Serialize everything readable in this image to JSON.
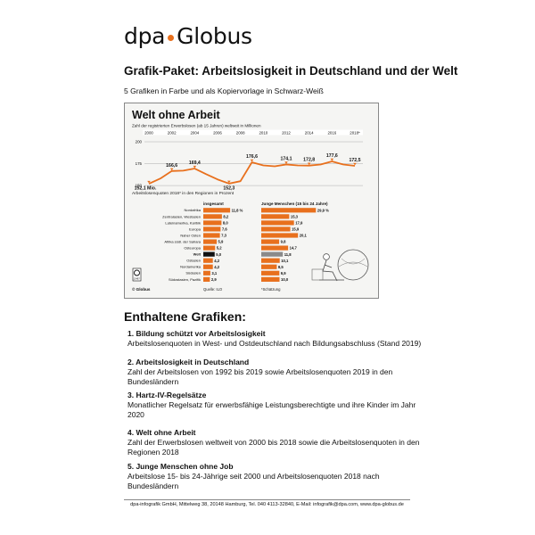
{
  "logo": {
    "part1": "dpa",
    "part2": "Globus"
  },
  "package": {
    "title": "Grafik-Paket: Arbeitslosigkeit in Deutschland und der Welt",
    "subtitle": "5 Grafiken in Farbe und als Kopiervorlage in Schwarz-Weiß"
  },
  "thumbnail": {
    "title": "Welt ohne Arbeit",
    "subtitle": "Zahl der registrierten Erwerbslosen (ab 15 Jahren) weltweit in Millionen",
    "colors": {
      "accent": "#e8701d",
      "dark_bar": "#111111",
      "gray_bar": "#8a8a8a"
    },
    "line_chart": {
      "years": [
        "2000",
        "2002",
        "2004",
        "2006",
        "2008",
        "2010",
        "2012",
        "2014",
        "2016",
        "2018*"
      ],
      "y_ticks": [
        "200",
        "175",
        "150"
      ],
      "labels": [
        "152,1 Mio.",
        "166,6",
        "169,4",
        "152,3",
        "176,6",
        "174,1",
        "172,8",
        "177,6",
        "172,5"
      ]
    },
    "bar_section_title": "Arbeitslosenquoten 2018* in den Regionen in Prozent",
    "col_total": "insgesamt",
    "col_youth": "Junge Menschen (15 bis 24 Jahre)",
    "regions": [
      "Nordafrika",
      "Zentralasien, Westasien",
      "Lateinamerika, Karibik",
      "Europa",
      "Naher Osten",
      "Afrika südl. der Sahara",
      "Osteuropa",
      "Welt",
      "Ostasien",
      "Nordamerika",
      "Südasien",
      "Südostasien, Pazifik"
    ],
    "total_labels": [
      "11,8 %",
      "8,2",
      "8,0",
      "7,6",
      "7,3",
      "5,9",
      "5,2",
      "5,0",
      "4,2",
      "4,2",
      "3,1",
      "2,9"
    ],
    "youth_labels": [
      "29,9 %",
      "15,3",
      "17,9",
      "15,9",
      "20,1",
      "9,8",
      "14,7",
      "11,8",
      "10,1",
      "8,5",
      "9,9",
      "10,0"
    ],
    "footer_left": "© Globus",
    "footer_source": "Quelle: ILO",
    "footer_note": "*Schätzung",
    "badge_text": "13487"
  },
  "chart_data": [
    {
      "type": "line",
      "title": "Welt ohne Arbeit",
      "subtitle": "Zahl der registrierten Erwerbslosen (ab 15 Jahren) weltweit in Millionen",
      "x": [
        "2000",
        "2002",
        "2004",
        "2006",
        "2008",
        "2010",
        "2012",
        "2014",
        "2016",
        "2018*"
      ],
      "series": [
        {
          "values": [
            {
              "x": 2000,
              "y": 152.1
            },
            {
              "x": 2001,
              "y": 158
            },
            {
              "x": 2002,
              "y": 166.6
            },
            {
              "x": 2003,
              "y": 167
            },
            {
              "x": 2004,
              "y": 169.4
            },
            {
              "x": 2005,
              "y": 163
            },
            {
              "x": 2006,
              "y": 157
            },
            {
              "x": 2007,
              "y": 152.3
            },
            {
              "x": 2008,
              "y": 155
            },
            {
              "x": 2009,
              "y": 176.6
            },
            {
              "x": 2010,
              "y": 173
            },
            {
              "x": 2011,
              "y": 172
            },
            {
              "x": 2012,
              "y": 174.1
            },
            {
              "x": 2013,
              "y": 173
            },
            {
              "x": 2014,
              "y": 172.8
            },
            {
              "x": 2015,
              "y": 174
            },
            {
              "x": 2016,
              "y": 177.6
            },
            {
              "x": 2017,
              "y": 174
            },
            {
              "x": 2018,
              "y": 172.5
            }
          ]
        }
      ],
      "ylim": [
        145,
        200
      ],
      "y_ticks": [
        150,
        175,
        200
      ]
    },
    {
      "type": "bar",
      "title": "Arbeitslosenquoten 2018* in den Regionen in Prozent",
      "categories": [
        "Nordafrika",
        "Zentralasien, Westasien",
        "Lateinamerika, Karibik",
        "Europa",
        "Naher Osten",
        "Afrika südl. der Sahara",
        "Osteuropa",
        "Welt",
        "Ostasien",
        "Nordamerika",
        "Südasien",
        "Südostasien, Pazifik"
      ],
      "series": [
        {
          "name": "insgesamt",
          "values": [
            11.8,
            8.2,
            8.0,
            7.6,
            7.3,
            5.9,
            5.2,
            5.0,
            4.2,
            4.2,
            3.1,
            2.9
          ]
        },
        {
          "name": "Junge Menschen (15 bis 24 Jahre)",
          "values": [
            29.9,
            15.3,
            17.9,
            15.9,
            20.1,
            9.8,
            14.7,
            11.8,
            10.1,
            8.5,
            9.9,
            10.0
          ]
        }
      ]
    }
  ],
  "contents": {
    "heading": "Enthaltene Grafiken:",
    "items": [
      {
        "title": "1. Bildung schützt vor Arbeitslosigkeit",
        "desc": "Arbeitslosenquoten in West- und Ostdeutschland nach Bildungsabschluss (Stand 2019)"
      },
      {
        "title": "2. Arbeitslosigkeit in Deutschland",
        "desc": "Zahl der Arbeitslosen von 1992 bis 2019 sowie Arbeitslosenquoten 2019 in den Bundesländern"
      },
      {
        "title": "3. Hartz-IV-Regelsätze",
        "desc": "Monatlicher Regelsatz für erwerbsfähige Leistungsberechtigte und ihre Kinder im Jahr 2020"
      },
      {
        "title": "4. Welt ohne Arbeit",
        "desc": "Zahl der Erwerbslosen weltweit von 2000 bis 2018 sowie die Arbeitslosenquoten in den Regionen 2018"
      },
      {
        "title": "5. Junge Menschen ohne Job",
        "desc": "Arbeitslose 15- bis 24-Jährige seit 2000 und Arbeitslosenquoten 2018 nach Bundesländern"
      }
    ]
  },
  "footer": "dpa-infografik GmbH, Mittelweg 38, 20148 Hamburg, Tel. 040 4113-32840, E-Mail: infografik@dpa.com,   www.dpa-globus.de"
}
